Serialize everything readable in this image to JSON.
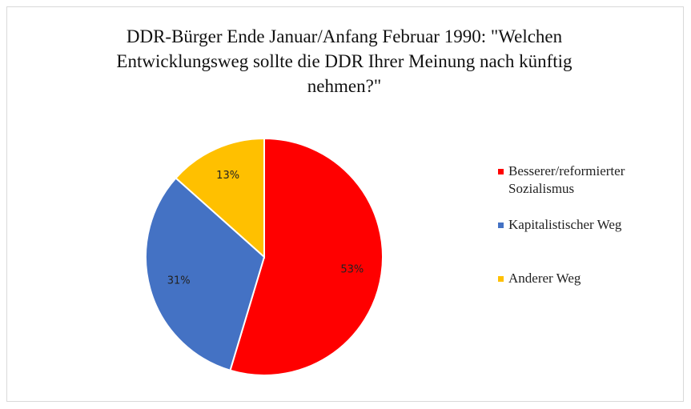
{
  "chart_data": {
    "type": "pie",
    "title": "DDR-Bürger Ende Januar/Anfang Februar 1990: \"Welchen Entwicklungsweg sollte die DDR Ihrer Meinung nach künftig nehmen?\"",
    "categories": [
      "Besserer/reformierter Sozialismus",
      "Kapitalistischer Weg",
      "Anderer Weg"
    ],
    "values": [
      53,
      31,
      13
    ],
    "value_labels": [
      "53%",
      "31%",
      "13%"
    ],
    "colors": [
      "#ff0000",
      "#4472c4",
      "#ffc000"
    ],
    "legend": "right"
  }
}
